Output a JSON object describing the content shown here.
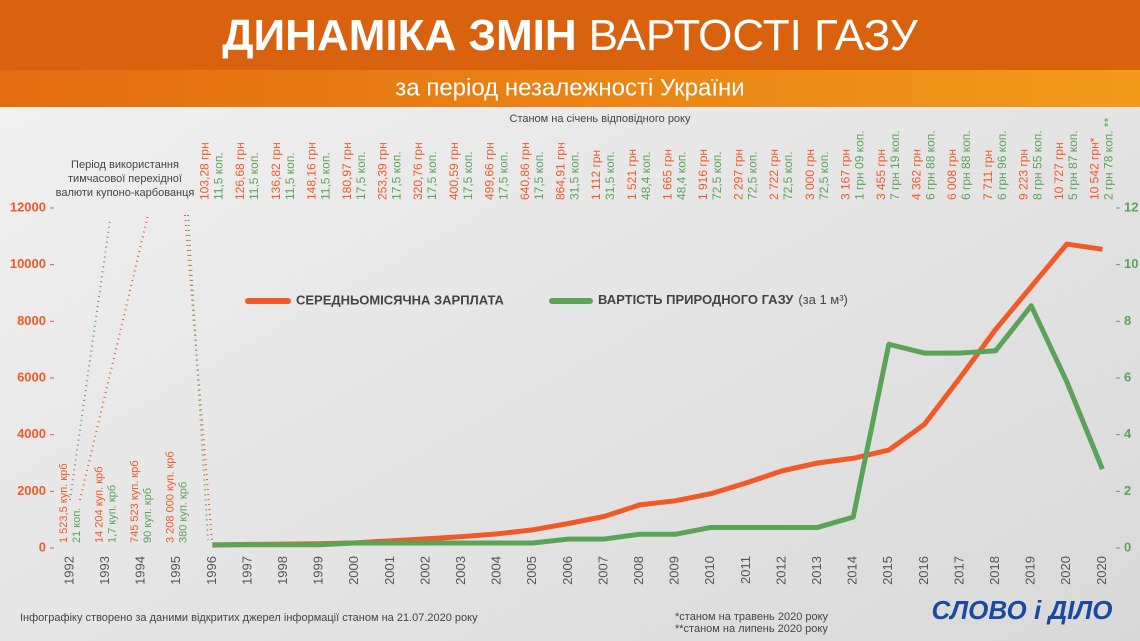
{
  "chart_data": {
    "type": "line",
    "title_bold": "ДИНАМІКА ЗМІН",
    "title_rest": "ВАРТОСТІ ГАЗУ",
    "subtitle": "за період незалежності України",
    "note_top": "Станом на січень відповідного року",
    "kupon_note": [
      "Період використання",
      "тимчасової перехідної",
      "валюти купоно-карбованця"
    ],
    "kupon_labels": {
      "wage": [
        "1 523,5 куп. крб",
        "14 204 куп. крб",
        "745 523 куп. крб",
        "3 208 000 куп. крб"
      ],
      "gas": [
        "21 коп.",
        "1,7 куп. крб",
        "90 куп. крб",
        "380 куп. крб"
      ]
    },
    "categories": [
      "1992",
      "1993",
      "1994",
      "1995",
      "1996",
      "1997",
      "1998",
      "1999",
      "2000",
      "2001",
      "2002",
      "2003",
      "2004",
      "2005",
      "2006",
      "2007",
      "2008",
      "2009",
      "2010",
      "2011",
      "2012",
      "2013",
      "2014",
      "2015",
      "2016",
      "2017",
      "2018",
      "2019",
      "2020",
      "2020"
    ],
    "series": [
      {
        "name": "СЕРЕДНЬОМІСЯЧНА ЗАРПЛАТА",
        "color": "#f05a28",
        "values": [
          null,
          null,
          null,
          null,
          103.28,
          126.68,
          136.82,
          148.16,
          180.97,
          253.39,
          320.76,
          400.59,
          499.66,
          640.86,
          864.91,
          1112,
          1521,
          1665,
          1916,
          2297,
          2722,
          3000,
          3167,
          3455,
          4362,
          6008,
          7711,
          9223,
          10727,
          10542
        ],
        "value_labels": [
          null,
          null,
          null,
          null,
          "103,28 грн",
          "126,68 грн",
          "136,82 грн",
          "148,16 грн",
          "180,97 грн",
          "253,39 грн",
          "320,76 грн",
          "400,59 грн",
          "499,66 грн",
          "640,86 грн",
          "864,91 грн",
          "1 112 грн",
          "1 521 грн",
          "1 665 грн",
          "1 916 грн",
          "2 297 грн",
          "2 722 грн",
          "3 000 грн",
          "3 167 грн",
          "3 455 грн",
          "4 362 грн",
          "6 008 грн",
          "7 711 грн",
          "9 223 грн",
          "10 727 грн",
          "10 542 грн*"
        ]
      },
      {
        "name": "ВАРТІСТЬ ПРИРОДНОГО ГАЗУ",
        "name_suffix": "(за 1 м³)",
        "color": "#5ca35a",
        "axis": "y2",
        "values": [
          null,
          null,
          null,
          null,
          0.115,
          0.115,
          0.115,
          0.115,
          0.175,
          0.175,
          0.175,
          0.175,
          0.175,
          0.175,
          0.315,
          0.315,
          0.484,
          0.484,
          0.725,
          0.725,
          0.725,
          0.725,
          1.09,
          7.19,
          6.88,
          6.88,
          6.96,
          8.55,
          5.87,
          2.78
        ],
        "value_labels": [
          null,
          null,
          null,
          null,
          "11,5 коп.",
          "11,5 коп.",
          "11,5 коп.",
          "11,5 коп.",
          "17,5 коп.",
          "17,5 коп.",
          "17,5 коп.",
          "17,5 коп.",
          "17,5 коп.",
          "17,5 коп.",
          "31,5 коп.",
          "31,5 коп.",
          "48,4 коп.",
          "48,4 коп.",
          "72,5 коп.",
          "72,5 коп.",
          "72,5 коп.",
          "72,5 коп.",
          "1 грн 09 коп.",
          "7 грн 19 коп.",
          "6 грн 88 коп.",
          "6 грн 88 коп.",
          "6 грн 96 коп.",
          "8 грн 55 коп.",
          "5 грн 87 коп.",
          "2 грн 78 коп. **"
        ]
      }
    ],
    "ylim": [
      0,
      12000
    ],
    "yticks": [
      0,
      2000,
      4000,
      6000,
      8000,
      10000,
      12000
    ],
    "y2lim": [
      0,
      12
    ],
    "y2ticks": [
      0,
      2,
      4,
      6,
      8,
      10,
      12
    ],
    "grid": false,
    "footer": "Інфографіку створено за даними відкритих джерел інформації станом на 21.07.2020 року",
    "footnotes": [
      "*станом на травень 2020 року",
      "**станом на липень 2020 року"
    ],
    "logo": "СЛОВО і ДІЛО"
  }
}
